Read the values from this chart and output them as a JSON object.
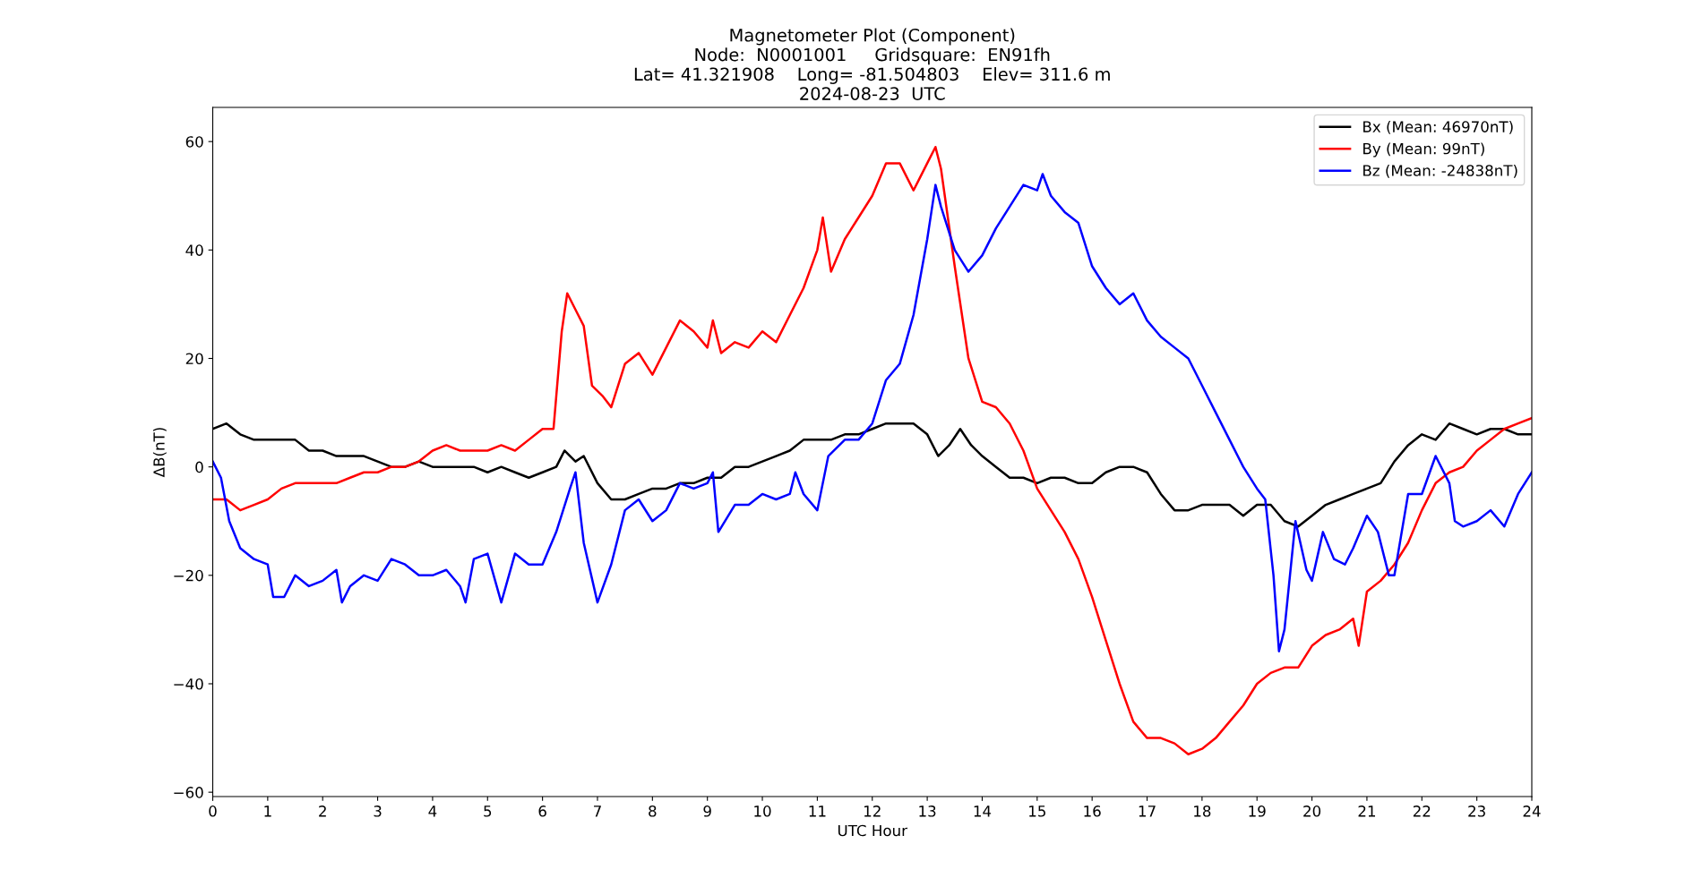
{
  "chart_data": {
    "type": "line",
    "title": "Magnetometer Plot (Component)\nNode:  N0001001     Gridsquare:  EN91fh\nLat= 41.321908    Long= -81.504803    Elev= 311.6 m\n2024-08-23  UTC",
    "xlabel": "UTC Hour",
    "ylabel": "ΔB(nT)",
    "xlim": [
      0,
      24
    ],
    "xticks": [
      0,
      1,
      2,
      3,
      4,
      5,
      6,
      7,
      8,
      9,
      10,
      11,
      12,
      13,
      14,
      15,
      16,
      17,
      18,
      19,
      20,
      21,
      22,
      23,
      24
    ],
    "ylim": [
      -60.8,
      66.3
    ],
    "yticks": [
      -60,
      -40,
      -20,
      0,
      20,
      40,
      60
    ],
    "grid": false,
    "legend": "top right",
    "line_style": "solid",
    "marker": "none",
    "series": [
      {
        "name": "Bx (Mean: 46970nT)",
        "color": "#000000",
        "x": [
          0,
          0.25,
          0.5,
          0.75,
          1,
          1.25,
          1.5,
          1.75,
          2,
          2.25,
          2.5,
          2.75,
          3,
          3.25,
          3.5,
          3.75,
          4,
          4.25,
          4.5,
          4.75,
          5,
          5.25,
          5.5,
          5.75,
          6,
          6.25,
          6.4,
          6.6,
          6.75,
          7,
          7.25,
          7.5,
          7.75,
          8,
          8.25,
          8.5,
          8.75,
          9,
          9.25,
          9.5,
          9.75,
          10,
          10.25,
          10.5,
          10.75,
          11,
          11.25,
          11.5,
          11.75,
          12,
          12.25,
          12.5,
          12.75,
          13,
          13.2,
          13.4,
          13.6,
          13.8,
          14,
          14.25,
          14.5,
          14.75,
          15,
          15.25,
          15.5,
          15.75,
          16,
          16.25,
          16.5,
          16.75,
          17,
          17.25,
          17.5,
          17.75,
          18,
          18.25,
          18.5,
          18.75,
          19,
          19.25,
          19.5,
          19.75,
          20,
          20.25,
          20.5,
          20.75,
          21,
          21.25,
          21.5,
          21.75,
          22,
          22.25,
          22.5,
          22.75,
          23,
          23.25,
          23.5,
          23.75,
          24
        ],
        "values": [
          7,
          8,
          6,
          5,
          5,
          5,
          5,
          3,
          3,
          2,
          2,
          2,
          1,
          0,
          0,
          1,
          0,
          0,
          0,
          0,
          -1,
          0,
          -1,
          -2,
          -1,
          0,
          3,
          1,
          2,
          -3,
          -6,
          -6,
          -5,
          -4,
          -4,
          -3,
          -3,
          -2,
          -2,
          0,
          0,
          1,
          2,
          3,
          5,
          5,
          5,
          6,
          6,
          7,
          8,
          8,
          8,
          6,
          2,
          4,
          7,
          4,
          2,
          0,
          -2,
          -2,
          -3,
          -2,
          -2,
          -3,
          -3,
          -1,
          0,
          0,
          -1,
          -5,
          -8,
          -8,
          -7,
          -7,
          -7,
          -9,
          -7,
          -7,
          -10,
          -11,
          -9,
          -7,
          -6,
          -5,
          -4,
          -3,
          1,
          4,
          6,
          5,
          8,
          7,
          6,
          7,
          7,
          6,
          6
        ]
      },
      {
        "name": "By (Mean: 99nT)",
        "color": "#ff0000",
        "x": [
          0,
          0.25,
          0.5,
          0.75,
          1,
          1.25,
          1.5,
          1.75,
          2,
          2.25,
          2.5,
          2.75,
          3,
          3.25,
          3.5,
          3.75,
          4,
          4.25,
          4.5,
          4.75,
          5,
          5.25,
          5.5,
          5.75,
          6,
          6.2,
          6.35,
          6.45,
          6.6,
          6.75,
          6.9,
          7.1,
          7.25,
          7.5,
          7.75,
          8,
          8.25,
          8.5,
          8.75,
          9,
          9.1,
          9.25,
          9.5,
          9.75,
          10,
          10.25,
          10.5,
          10.75,
          11,
          11.1,
          11.25,
          11.5,
          11.75,
          12,
          12.25,
          12.5,
          12.75,
          12.85,
          13,
          13.15,
          13.25,
          13.5,
          13.75,
          14,
          14.25,
          14.5,
          14.75,
          15,
          15.25,
          15.5,
          15.75,
          16,
          16.25,
          16.5,
          16.75,
          17,
          17.25,
          17.5,
          17.75,
          18,
          18.25,
          18.5,
          18.75,
          19,
          19.25,
          19.5,
          19.75,
          20,
          20.25,
          20.5,
          20.75,
          20.85,
          21,
          21.25,
          21.5,
          21.75,
          22,
          22.25,
          22.5,
          22.75,
          23,
          23.25,
          23.5,
          23.75,
          24
        ],
        "values": [
          -6,
          -6,
          -8,
          -7,
          -6,
          -4,
          -3,
          -3,
          -3,
          -3,
          -2,
          -1,
          -1,
          0,
          0,
          1,
          3,
          4,
          3,
          3,
          3,
          4,
          3,
          5,
          7,
          7,
          25,
          32,
          29,
          26,
          15,
          13,
          11,
          19,
          21,
          17,
          22,
          27,
          25,
          22,
          27,
          21,
          23,
          22,
          25,
          23,
          28,
          33,
          40,
          46,
          36,
          42,
          46,
          50,
          56,
          56,
          51,
          53,
          56,
          59,
          55,
          37,
          20,
          12,
          11,
          8,
          3,
          -4,
          -8,
          -12,
          -17,
          -24,
          -32,
          -40,
          -47,
          -50,
          -50,
          -51,
          -53,
          -52,
          -50,
          -47,
          -44,
          -40,
          -38,
          -37,
          -37,
          -33,
          -31,
          -30,
          -28,
          -33,
          -23,
          -21,
          -18,
          -14,
          -8,
          -3,
          -1,
          0,
          3,
          5,
          7,
          8,
          9
        ]
      },
      {
        "name": "Bz (Mean: -24838nT)",
        "color": "#0000ff",
        "x": [
          0,
          0.15,
          0.3,
          0.5,
          0.75,
          1,
          1.1,
          1.3,
          1.5,
          1.75,
          2,
          2.25,
          2.35,
          2.5,
          2.75,
          3,
          3.25,
          3.5,
          3.75,
          4,
          4.25,
          4.5,
          4.6,
          4.75,
          5,
          5.25,
          5.5,
          5.75,
          6,
          6.25,
          6.5,
          6.6,
          6.75,
          7,
          7.25,
          7.5,
          7.75,
          8,
          8.25,
          8.5,
          8.75,
          9,
          9.1,
          9.2,
          9.5,
          9.75,
          10,
          10.25,
          10.5,
          10.6,
          10.75,
          11,
          11.2,
          11.5,
          11.75,
          12,
          12.25,
          12.5,
          12.75,
          13,
          13.15,
          13.25,
          13.5,
          13.75,
          14,
          14.25,
          14.5,
          14.75,
          15,
          15.1,
          15.25,
          15.5,
          15.75,
          16,
          16.25,
          16.5,
          16.75,
          17,
          17.25,
          17.5,
          17.75,
          18,
          18.25,
          18.5,
          18.75,
          19,
          19.15,
          19.3,
          19.4,
          19.5,
          19.6,
          19.7,
          19.9,
          20,
          20.2,
          20.4,
          20.6,
          20.75,
          21,
          21.2,
          21.4,
          21.5,
          21.75,
          22,
          22.25,
          22.5,
          22.6,
          22.75,
          23,
          23.25,
          23.5,
          23.75,
          24
        ],
        "values": [
          1,
          -2,
          -10,
          -15,
          -17,
          -18,
          -24,
          -24,
          -20,
          -22,
          -21,
          -19,
          -25,
          -22,
          -20,
          -21,
          -17,
          -18,
          -20,
          -20,
          -19,
          -22,
          -25,
          -17,
          -16,
          -25,
          -16,
          -18,
          -18,
          -12,
          -4,
          -1,
          -14,
          -25,
          -18,
          -8,
          -6,
          -10,
          -8,
          -3,
          -4,
          -3,
          -1,
          -12,
          -7,
          -7,
          -5,
          -6,
          -5,
          -1,
          -5,
          -8,
          2,
          5,
          5,
          8,
          16,
          19,
          28,
          42,
          52,
          48,
          40,
          36,
          39,
          44,
          48,
          52,
          51,
          54,
          50,
          47,
          45,
          37,
          33,
          30,
          32,
          27,
          24,
          22,
          20,
          15,
          10,
          5,
          0,
          -4,
          -6,
          -20,
          -34,
          -30,
          -20,
          -10,
          -19,
          -21,
          -12,
          -17,
          -18,
          -15,
          -9,
          -12,
          -20,
          -20,
          -5,
          -5,
          2,
          -3,
          -10,
          -11,
          -10,
          -8,
          -11,
          -5,
          -1
        ]
      }
    ]
  }
}
